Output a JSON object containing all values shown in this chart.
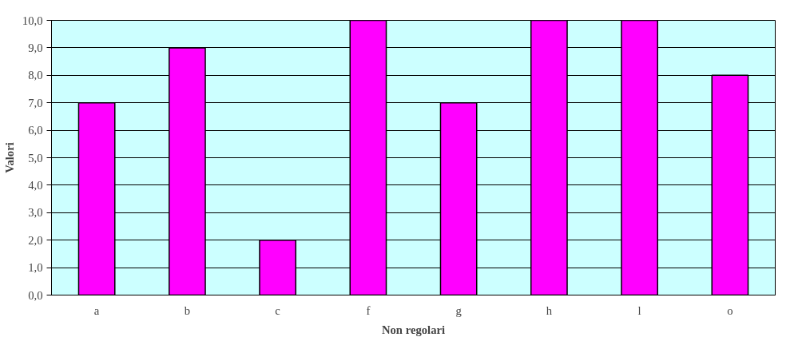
{
  "chart_data": {
    "type": "bar",
    "xlabel": "Non regolari",
    "ylabel": "Valori",
    "categories": [
      "a",
      "b",
      "c",
      "f",
      "g",
      "h",
      "l",
      "o"
    ],
    "values": [
      7,
      9,
      2,
      10,
      7,
      10,
      10,
      8
    ],
    "color": "#ff00ff",
    "ylim": [
      0,
      10
    ],
    "yticks": [
      {
        "value": 0,
        "label": "0,0"
      },
      {
        "value": 1,
        "label": "1,0"
      },
      {
        "value": 2,
        "label": "2,0"
      },
      {
        "value": 3,
        "label": "3,0"
      },
      {
        "value": 4,
        "label": "4,0"
      },
      {
        "value": 5,
        "label": "5,0"
      },
      {
        "value": 6,
        "label": "6,0"
      },
      {
        "value": 7,
        "label": "7,0"
      },
      {
        "value": 8,
        "label": "8,0"
      },
      {
        "value": 9,
        "label": "9,0"
      },
      {
        "value": 10,
        "label": "10,0"
      }
    ],
    "grid": "y"
  }
}
